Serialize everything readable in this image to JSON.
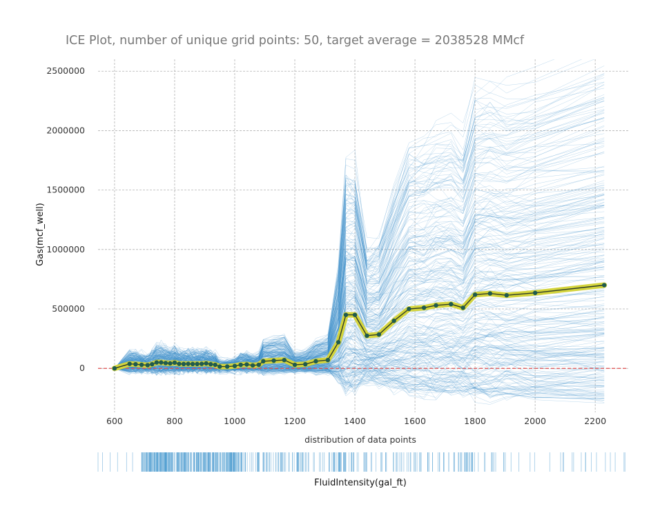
{
  "chart_data": {
    "type": "line",
    "title": "ICE Plot, number of unique grid points: 50, target average = 2038528 MMcf",
    "xlabel": "distribution of data points",
    "ylabel": "Gas(mcf_well)",
    "rug_label": "FluidIntensity(gal_ft)",
    "xlim": [
      545,
      2310
    ],
    "ylim": [
      -370000,
      2600000
    ],
    "xticks": [
      600,
      800,
      1000,
      1200,
      1400,
      1600,
      1800,
      2000,
      2200
    ],
    "yticks": [
      0,
      500000,
      1000000,
      1500000,
      2000000,
      2500000
    ],
    "grid": true,
    "reference_line_y": 0,
    "colors": {
      "ice_lines": "#3a8cc8",
      "average_band": "#d4d43c",
      "average_line": "#2a3a2a",
      "average_points": "#1f5b4f",
      "reference_line": "#e05050",
      "rug": "#4a9ad0"
    },
    "series": [
      {
        "name": "",
        "x": [
          600,
          650,
          670,
          690,
          710,
          725,
          740,
          755,
          770,
          785,
          800,
          815,
          830,
          845,
          860,
          875,
          890,
          905,
          920,
          935,
          950,
          975,
          1000,
          1020,
          1040,
          1060,
          1080,
          1095,
          1130,
          1165,
          1200,
          1235,
          1270,
          1310,
          1345,
          1370,
          1400,
          1440,
          1480,
          1530,
          1580,
          1630,
          1670,
          1720,
          1760,
          1800,
          1850,
          1905,
          2000,
          2230
        ],
        "values": [
          0,
          38000,
          35000,
          30000,
          27000,
          35000,
          50000,
          50000,
          45000,
          42000,
          48000,
          38000,
          37000,
          38000,
          37000,
          37000,
          38000,
          42000,
          35000,
          30000,
          15000,
          15000,
          20000,
          30000,
          33000,
          25000,
          30000,
          60000,
          65000,
          70000,
          30000,
          35000,
          60000,
          70000,
          220000,
          450000,
          450000,
          275000,
          285000,
          400000,
          500000,
          510000,
          530000,
          540000,
          510000,
          620000,
          630000,
          615000,
          635000,
          700000
        ]
      }
    ]
  }
}
